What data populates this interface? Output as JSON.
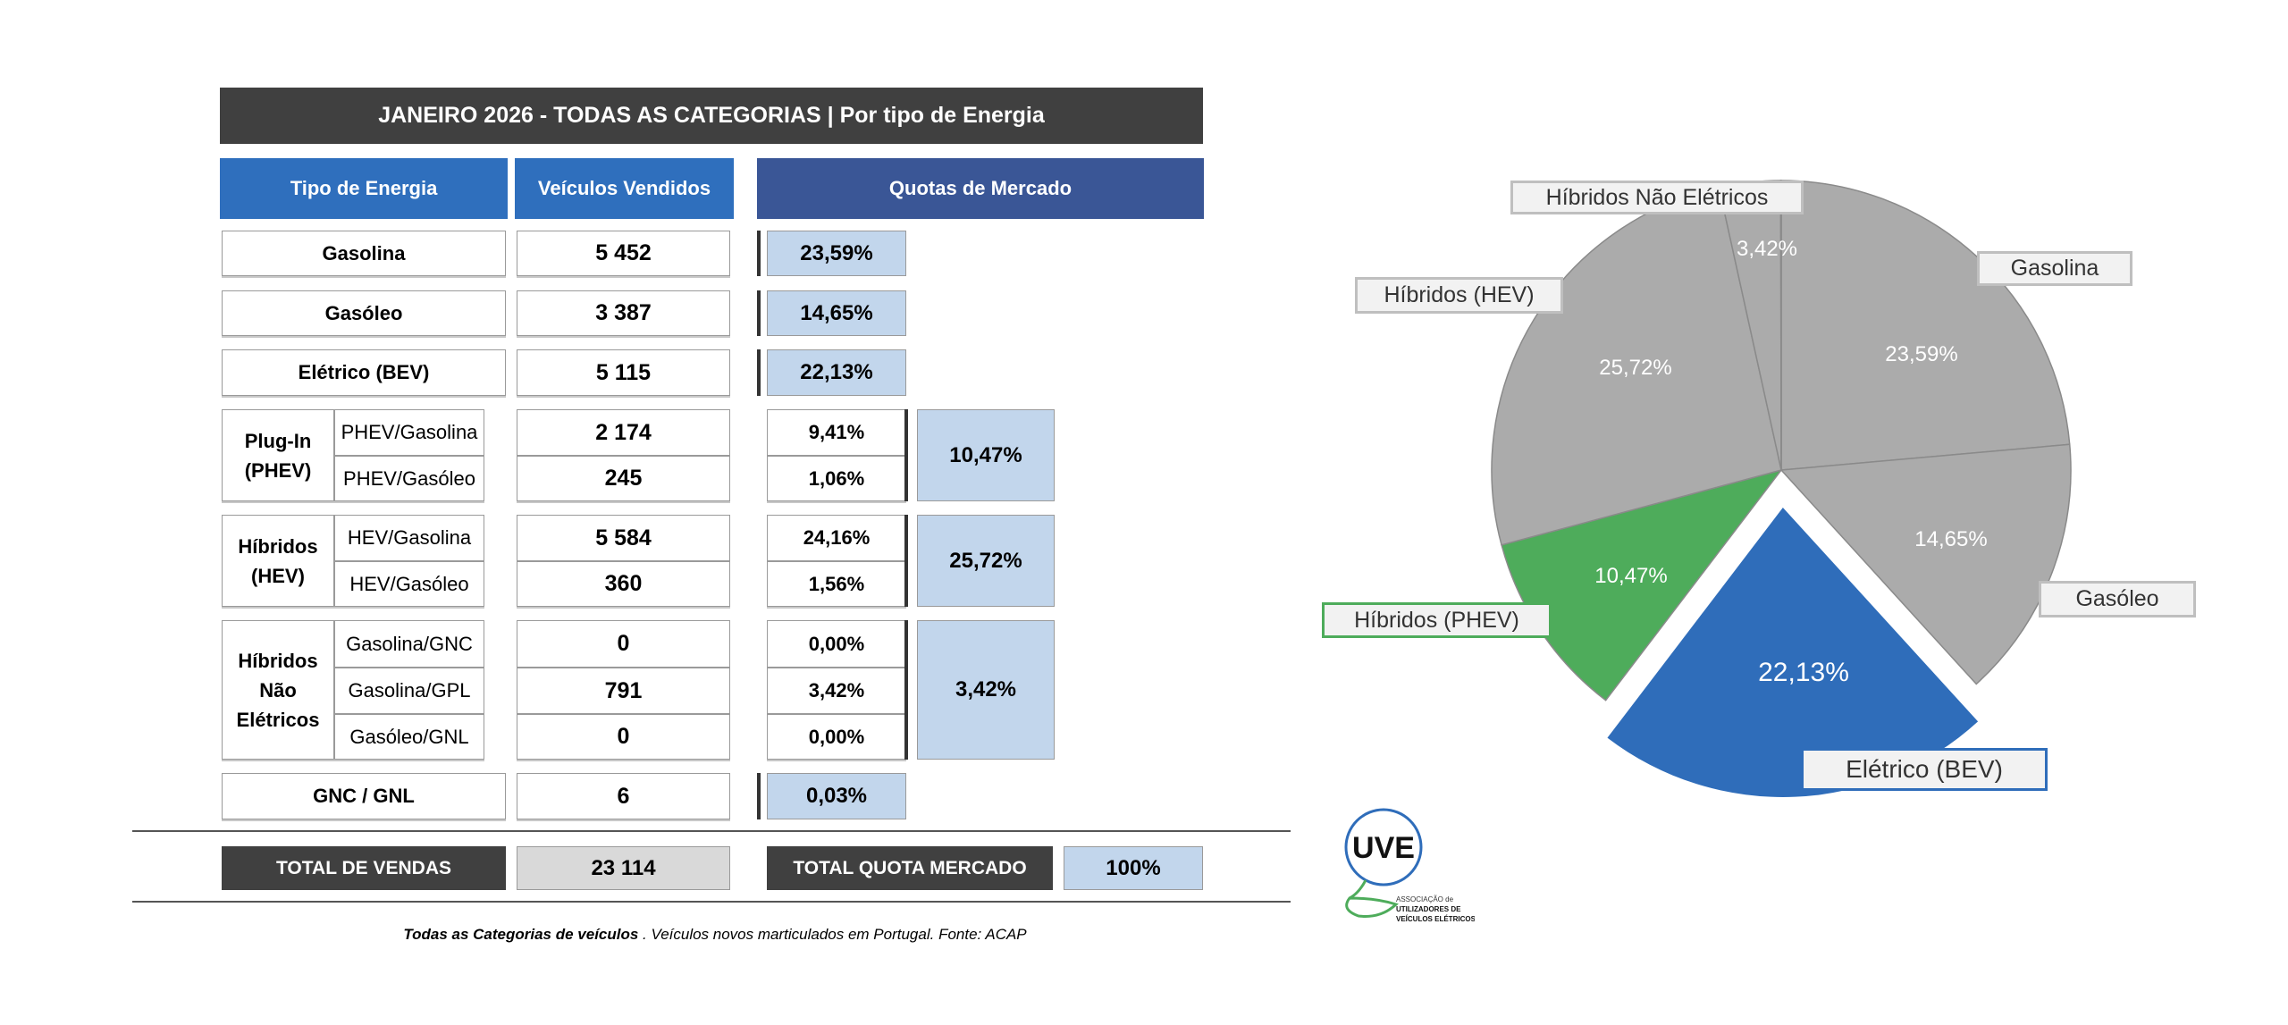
{
  "title": "JANEIRO 2026  - TODAS AS CATEGORIAS | Por tipo de Energia",
  "headers": {
    "type": "Tipo de Energia",
    "sold": "Veículos Vendidos",
    "share": "Quotas de Mercado"
  },
  "rows": {
    "gasolina": {
      "label": "Gasolina",
      "sold": "5 452",
      "share": "23,59%"
    },
    "gasoleo": {
      "label": "Gasóleo",
      "sold": "3 387",
      "share": "14,65%"
    },
    "bev": {
      "label": "Elétrico (BEV)",
      "sold": "5 115",
      "share": "22,13%"
    },
    "phev": {
      "label": "Plug-In (PHEV)",
      "total_share": "10,47%",
      "sub": [
        {
          "label": "PHEV/Gasolina",
          "sold": "2 174",
          "share": "9,41%"
        },
        {
          "label": "PHEV/Gasóleo",
          "sold": "245",
          "share": "1,06%"
        }
      ]
    },
    "hev": {
      "label": "Híbridos (HEV)",
      "total_share": "25,72%",
      "sub": [
        {
          "label": "HEV/Gasolina",
          "sold": "5 584",
          "share": "24,16%"
        },
        {
          "label": "HEV/Gasóleo",
          "sold": "360",
          "share": "1,56%"
        }
      ]
    },
    "nonelec": {
      "label": "Híbridos Não Elétricos",
      "total_share": "3,42%",
      "sub": [
        {
          "label": "Gasolina/GNC",
          "sold": "0",
          "share": "0,00%"
        },
        {
          "label": "Gasolina/GPL",
          "sold": "791",
          "share": "3,42%"
        },
        {
          "label": "Gasóleo/GNL",
          "sold": "0",
          "share": "0,00%"
        }
      ]
    },
    "gnc": {
      "label": "GNC / GNL",
      "sold": "6",
      "share": "0,03%"
    }
  },
  "totals": {
    "sales_label": "TOTAL DE VENDAS",
    "sales": "23 114",
    "share_label": "TOTAL QUOTA MERCADO",
    "share": "100%"
  },
  "footnote": {
    "bold": "Todas as Categorias de veículos",
    "rest": " . Veículos novos marticulados em Portugal. Fonte: ACAP"
  },
  "logo": {
    "text": "UVE",
    "sub1": "ASSOCIAÇÃO de",
    "sub2": "UTILIZADORES DE",
    "sub3": "VEÍCULOS ELÉTRICOS"
  },
  "colors": {
    "gray": "#ababab",
    "green": "#4eac5b",
    "blue": "#2f6dba"
  },
  "chart_data": {
    "type": "pie",
    "start": "top, clockwise",
    "slices": [
      {
        "name": "Gasolina",
        "value": 23.59,
        "label": "23,59%",
        "color": "#ababab"
      },
      {
        "name": "Gasóleo",
        "value": 14.65,
        "label": "14,65%",
        "color": "#ababab"
      },
      {
        "name": "Elétrico (BEV)",
        "value": 22.13,
        "label": "22,13%",
        "color": "#2f6dba",
        "exploded": true
      },
      {
        "name": "Híbridos (PHEV)",
        "value": 10.47,
        "label": "10,47%",
        "color": "#4eac5b"
      },
      {
        "name": "Híbridos (HEV)",
        "value": 25.72,
        "label": "25,72%",
        "color": "#ababab"
      },
      {
        "name": "Híbridos Não Elétricos",
        "value": 3.42,
        "label": "3,42%",
        "color": "#ababab"
      },
      {
        "name": "GNC / GNL",
        "value": 0.03,
        "label": "",
        "color": "#5b7fb5"
      }
    ]
  }
}
